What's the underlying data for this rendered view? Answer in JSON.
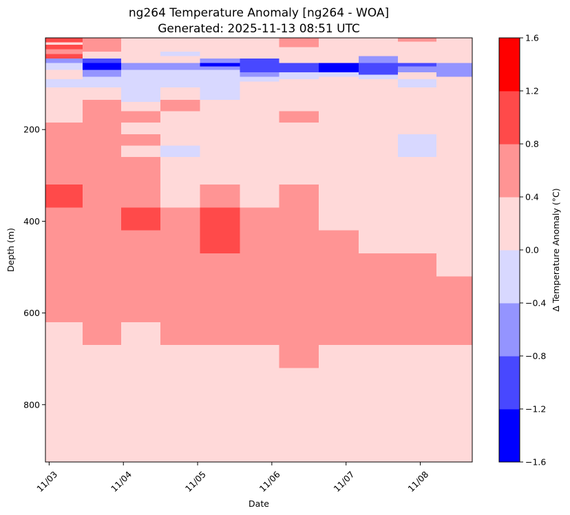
{
  "chart_data": {
    "type": "heatmap",
    "title": "ng264 Temperature Anomaly [ng264 - WOA]",
    "subtitle": "Generated: 2025-11-13 08:51 UTC",
    "xlabel": "Date",
    "ylabel": "Depth (m)",
    "colorbar_label": "Δ Temperature Anomaly (°C)",
    "x_ticks": [
      "11/03",
      "11/04",
      "11/05",
      "11/06",
      "11/07",
      "11/08"
    ],
    "y_ticks": [
      "200",
      "400",
      "600",
      "800"
    ],
    "y_tick_values": [
      200,
      400,
      600,
      800
    ],
    "color_levels": [
      -1.6,
      -1.2,
      -0.8,
      -0.4,
      0.0,
      0.4,
      0.8,
      1.2,
      1.6
    ],
    "colorbar_tick_labels": [
      "−1.6",
      "−1.2",
      "−0.8",
      "−0.4",
      "0.0",
      "0.4",
      "0.8",
      "1.2",
      "1.6"
    ],
    "level_colors": [
      "#0000ff",
      "#4848ff",
      "#9494ff",
      "#d8d8ff",
      "#ffd9d9",
      "#ff9494",
      "#ff4a4a",
      "#ff0000"
    ],
    "x_range_days": [
      -0.05,
      5.7
    ],
    "y_range_m": [
      0,
      925
    ],
    "column_edges_days": [
      -0.05,
      0.45,
      0.97,
      1.5,
      2.03,
      2.57,
      3.1,
      3.63,
      4.17,
      4.7,
      5.22,
      5.7
    ],
    "cells": [
      {
        "col": 0,
        "d0": 0,
        "d1": 10,
        "value": 1.0
      },
      {
        "col": 0,
        "d0": 10,
        "d1": 15,
        "value": 0.2
      },
      {
        "col": 0,
        "d0": 15,
        "d1": 25,
        "value": 1.0
      },
      {
        "col": 0,
        "d0": 25,
        "d1": 35,
        "value": 0.6
      },
      {
        "col": 0,
        "d0": 35,
        "d1": 45,
        "value": 1.0
      },
      {
        "col": 0,
        "d0": 45,
        "d1": 55,
        "value": -0.6
      },
      {
        "col": 0,
        "d0": 55,
        "d1": 70,
        "value": -0.2
      },
      {
        "col": 0,
        "d0": 70,
        "d1": 90,
        "value": 0.2
      },
      {
        "col": 0,
        "d0": 90,
        "d1": 108,
        "value": -0.2
      },
      {
        "col": 0,
        "d0": 108,
        "d1": 185,
        "value": 0.2
      },
      {
        "col": 0,
        "d0": 185,
        "d1": 320,
        "value": 0.6
      },
      {
        "col": 0,
        "d0": 320,
        "d1": 370,
        "value": 1.0
      },
      {
        "col": 0,
        "d0": 370,
        "d1": 620,
        "value": 0.6
      },
      {
        "col": 0,
        "d0": 620,
        "d1": 925,
        "value": 0.2
      },
      {
        "col": 1,
        "d0": 0,
        "d1": 30,
        "value": 0.6
      },
      {
        "col": 1,
        "d0": 30,
        "d1": 45,
        "value": 0.2
      },
      {
        "col": 1,
        "d0": 45,
        "d1": 55,
        "value": -1.0
      },
      {
        "col": 1,
        "d0": 55,
        "d1": 70,
        "value": -1.4
      },
      {
        "col": 1,
        "d0": 70,
        "d1": 85,
        "value": -0.6
      },
      {
        "col": 1,
        "d0": 85,
        "d1": 108,
        "value": -0.2
      },
      {
        "col": 1,
        "d0": 108,
        "d1": 135,
        "value": 0.2
      },
      {
        "col": 1,
        "d0": 135,
        "d1": 670,
        "value": 0.6
      },
      {
        "col": 1,
        "d0": 670,
        "d1": 925,
        "value": 0.2
      },
      {
        "col": 2,
        "d0": 0,
        "d1": 55,
        "value": 0.2
      },
      {
        "col": 2,
        "d0": 55,
        "d1": 70,
        "value": -0.6
      },
      {
        "col": 2,
        "d0": 70,
        "d1": 140,
        "value": -0.2
      },
      {
        "col": 2,
        "d0": 140,
        "d1": 160,
        "value": 0.2
      },
      {
        "col": 2,
        "d0": 160,
        "d1": 185,
        "value": 0.6
      },
      {
        "col": 2,
        "d0": 185,
        "d1": 210,
        "value": 0.2
      },
      {
        "col": 2,
        "d0": 210,
        "d1": 235,
        "value": 0.6
      },
      {
        "col": 2,
        "d0": 235,
        "d1": 260,
        "value": 0.2
      },
      {
        "col": 2,
        "d0": 260,
        "d1": 370,
        "value": 0.6
      },
      {
        "col": 2,
        "d0": 370,
        "d1": 420,
        "value": 1.0
      },
      {
        "col": 2,
        "d0": 420,
        "d1": 620,
        "value": 0.6
      },
      {
        "col": 2,
        "d0": 620,
        "d1": 925,
        "value": 0.2
      },
      {
        "col": 3,
        "d0": 0,
        "d1": 30,
        "value": 0.2
      },
      {
        "col": 3,
        "d0": 30,
        "d1": 40,
        "value": -0.2
      },
      {
        "col": 3,
        "d0": 40,
        "d1": 55,
        "value": 0.2
      },
      {
        "col": 3,
        "d0": 55,
        "d1": 70,
        "value": -0.6
      },
      {
        "col": 3,
        "d0": 70,
        "d1": 108,
        "value": -0.2
      },
      {
        "col": 3,
        "d0": 108,
        "d1": 135,
        "value": 0.2
      },
      {
        "col": 3,
        "d0": 135,
        "d1": 160,
        "value": 0.6
      },
      {
        "col": 3,
        "d0": 160,
        "d1": 235,
        "value": 0.2
      },
      {
        "col": 3,
        "d0": 235,
        "d1": 260,
        "value": -0.2
      },
      {
        "col": 3,
        "d0": 260,
        "d1": 370,
        "value": 0.2
      },
      {
        "col": 3,
        "d0": 370,
        "d1": 670,
        "value": 0.6
      },
      {
        "col": 3,
        "d0": 670,
        "d1": 925,
        "value": 0.2
      },
      {
        "col": 4,
        "d0": 0,
        "d1": 45,
        "value": 0.2
      },
      {
        "col": 4,
        "d0": 45,
        "d1": 55,
        "value": -0.6
      },
      {
        "col": 4,
        "d0": 55,
        "d1": 62,
        "value": -1.4
      },
      {
        "col": 4,
        "d0": 62,
        "d1": 70,
        "value": -0.6
      },
      {
        "col": 4,
        "d0": 70,
        "d1": 135,
        "value": -0.2
      },
      {
        "col": 4,
        "d0": 135,
        "d1": 320,
        "value": 0.2
      },
      {
        "col": 4,
        "d0": 320,
        "d1": 370,
        "value": 0.6
      },
      {
        "col": 4,
        "d0": 370,
        "d1": 470,
        "value": 1.0
      },
      {
        "col": 4,
        "d0": 470,
        "d1": 670,
        "value": 0.6
      },
      {
        "col": 4,
        "d0": 670,
        "d1": 925,
        "value": 0.2
      },
      {
        "col": 5,
        "d0": 0,
        "d1": 45,
        "value": 0.2
      },
      {
        "col": 5,
        "d0": 45,
        "d1": 75,
        "value": -1.0
      },
      {
        "col": 5,
        "d0": 75,
        "d1": 85,
        "value": -0.6
      },
      {
        "col": 5,
        "d0": 85,
        "d1": 95,
        "value": -0.2
      },
      {
        "col": 5,
        "d0": 95,
        "d1": 370,
        "value": 0.2
      },
      {
        "col": 5,
        "d0": 370,
        "d1": 670,
        "value": 0.6
      },
      {
        "col": 5,
        "d0": 670,
        "d1": 925,
        "value": 0.2
      },
      {
        "col": 6,
        "d0": 0,
        "d1": 20,
        "value": 0.6
      },
      {
        "col": 6,
        "d0": 20,
        "d1": 55,
        "value": 0.2
      },
      {
        "col": 6,
        "d0": 55,
        "d1": 75,
        "value": -1.0
      },
      {
        "col": 6,
        "d0": 75,
        "d1": 90,
        "value": -0.2
      },
      {
        "col": 6,
        "d0": 90,
        "d1": 160,
        "value": 0.2
      },
      {
        "col": 6,
        "d0": 160,
        "d1": 185,
        "value": 0.6
      },
      {
        "col": 6,
        "d0": 185,
        "d1": 320,
        "value": 0.2
      },
      {
        "col": 6,
        "d0": 320,
        "d1": 720,
        "value": 0.6
      },
      {
        "col": 6,
        "d0": 720,
        "d1": 925,
        "value": 0.2
      },
      {
        "col": 7,
        "d0": 0,
        "d1": 55,
        "value": 0.2
      },
      {
        "col": 7,
        "d0": 55,
        "d1": 75,
        "value": -1.4
      },
      {
        "col": 7,
        "d0": 75,
        "d1": 85,
        "value": -0.2
      },
      {
        "col": 7,
        "d0": 85,
        "d1": 420,
        "value": 0.2
      },
      {
        "col": 7,
        "d0": 420,
        "d1": 670,
        "value": 0.6
      },
      {
        "col": 7,
        "d0": 670,
        "d1": 925,
        "value": 0.2
      },
      {
        "col": 8,
        "d0": 0,
        "d1": 40,
        "value": 0.2
      },
      {
        "col": 8,
        "d0": 40,
        "d1": 55,
        "value": -0.6
      },
      {
        "col": 8,
        "d0": 55,
        "d1": 80,
        "value": -1.0
      },
      {
        "col": 8,
        "d0": 80,
        "d1": 90,
        "value": -0.2
      },
      {
        "col": 8,
        "d0": 90,
        "d1": 470,
        "value": 0.2
      },
      {
        "col": 8,
        "d0": 470,
        "d1": 670,
        "value": 0.6
      },
      {
        "col": 8,
        "d0": 670,
        "d1": 925,
        "value": 0.2
      },
      {
        "col": 9,
        "d0": 0,
        "d1": 8,
        "value": 0.6
      },
      {
        "col": 9,
        "d0": 8,
        "d1": 55,
        "value": 0.2
      },
      {
        "col": 9,
        "d0": 55,
        "d1": 62,
        "value": -1.0
      },
      {
        "col": 9,
        "d0": 62,
        "d1": 75,
        "value": -0.6
      },
      {
        "col": 9,
        "d0": 75,
        "d1": 90,
        "value": 0.2
      },
      {
        "col": 9,
        "d0": 90,
        "d1": 108,
        "value": -0.2
      },
      {
        "col": 9,
        "d0": 108,
        "d1": 210,
        "value": 0.2
      },
      {
        "col": 9,
        "d0": 210,
        "d1": 260,
        "value": -0.2
      },
      {
        "col": 9,
        "d0": 260,
        "d1": 470,
        "value": 0.2
      },
      {
        "col": 9,
        "d0": 470,
        "d1": 670,
        "value": 0.6
      },
      {
        "col": 9,
        "d0": 670,
        "d1": 925,
        "value": 0.2
      },
      {
        "col": 10,
        "d0": 0,
        "d1": 55,
        "value": 0.2
      },
      {
        "col": 10,
        "d0": 55,
        "d1": 85,
        "value": -0.6
      },
      {
        "col": 10,
        "d0": 85,
        "d1": 520,
        "value": 0.2
      },
      {
        "col": 10,
        "d0": 520,
        "d1": 670,
        "value": 0.6
      },
      {
        "col": 10,
        "d0": 670,
        "d1": 925,
        "value": 0.2
      }
    ]
  }
}
